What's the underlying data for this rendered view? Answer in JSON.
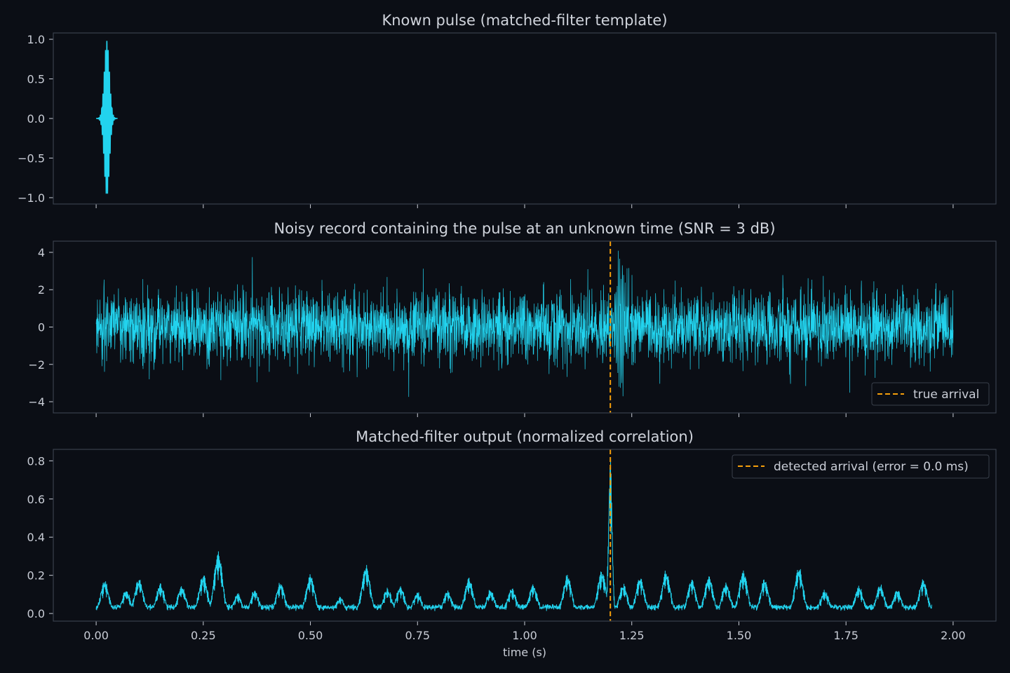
{
  "colors": {
    "background": "#0b0e15",
    "signal": "#22d3ee",
    "marker": "#f59e0b",
    "frame": "#3a404c",
    "text": "#c9cdd6"
  },
  "x_ticks": [
    "0.00",
    "0.25",
    "0.50",
    "0.75",
    "1.00",
    "1.25",
    "1.50",
    "1.75",
    "2.00"
  ],
  "x_tick_values": [
    0,
    0.25,
    0.5,
    0.75,
    1.0,
    1.25,
    1.5,
    1.75,
    2.0
  ],
  "xlabel": "time (s)",
  "chart_data": [
    {
      "type": "line",
      "title": "Known pulse (matched-filter template)",
      "xlim": [
        -0.1,
        2.1
      ],
      "ylim": [
        -1.08,
        1.08
      ],
      "y_ticks": [
        "1.0",
        "0.5",
        "0.0",
        "−0.5",
        "−1.0"
      ],
      "y_tick_values": [
        1.0,
        0.5,
        0.0,
        -0.5,
        -1.0
      ],
      "series": [
        {
          "x_range": [
            0.0,
            0.05
          ],
          "peak_amplitude": 0.98,
          "center": 0.025
        }
      ]
    },
    {
      "type": "line",
      "title": "Noisy record containing the pulse at an unknown time (SNR = 3 dB)",
      "xlim": [
        -0.1,
        2.1
      ],
      "ylim": [
        -4.6,
        4.6
      ],
      "y_ticks": [
        "4",
        "2",
        "0",
        "−2",
        "−4"
      ],
      "y_tick_values": [
        4,
        2,
        0,
        -2,
        -4
      ],
      "series": [
        {
          "x_range": [
            0.0,
            2.0
          ],
          "noise_std": 1.0,
          "pulse_center": 1.225
        }
      ],
      "marker": {
        "x": 1.2,
        "label": "true arrival"
      },
      "legend": "lower-right"
    },
    {
      "type": "line",
      "title": "Matched-filter output (normalized correlation)",
      "xlim": [
        -0.1,
        2.1
      ],
      "ylim": [
        -0.04,
        0.86
      ],
      "y_ticks": [
        "0.8",
        "0.6",
        "0.4",
        "0.2",
        "0.0"
      ],
      "y_tick_values": [
        0.8,
        0.6,
        0.4,
        0.2,
        0.0
      ],
      "series": [
        {
          "x_range": [
            0.0,
            1.95
          ],
          "peak_x": 1.2,
          "peak_y": 0.8
        }
      ],
      "marker": {
        "x": 1.2,
        "label": "detected arrival (error = 0.0 ms)"
      },
      "legend": "upper-right"
    }
  ]
}
